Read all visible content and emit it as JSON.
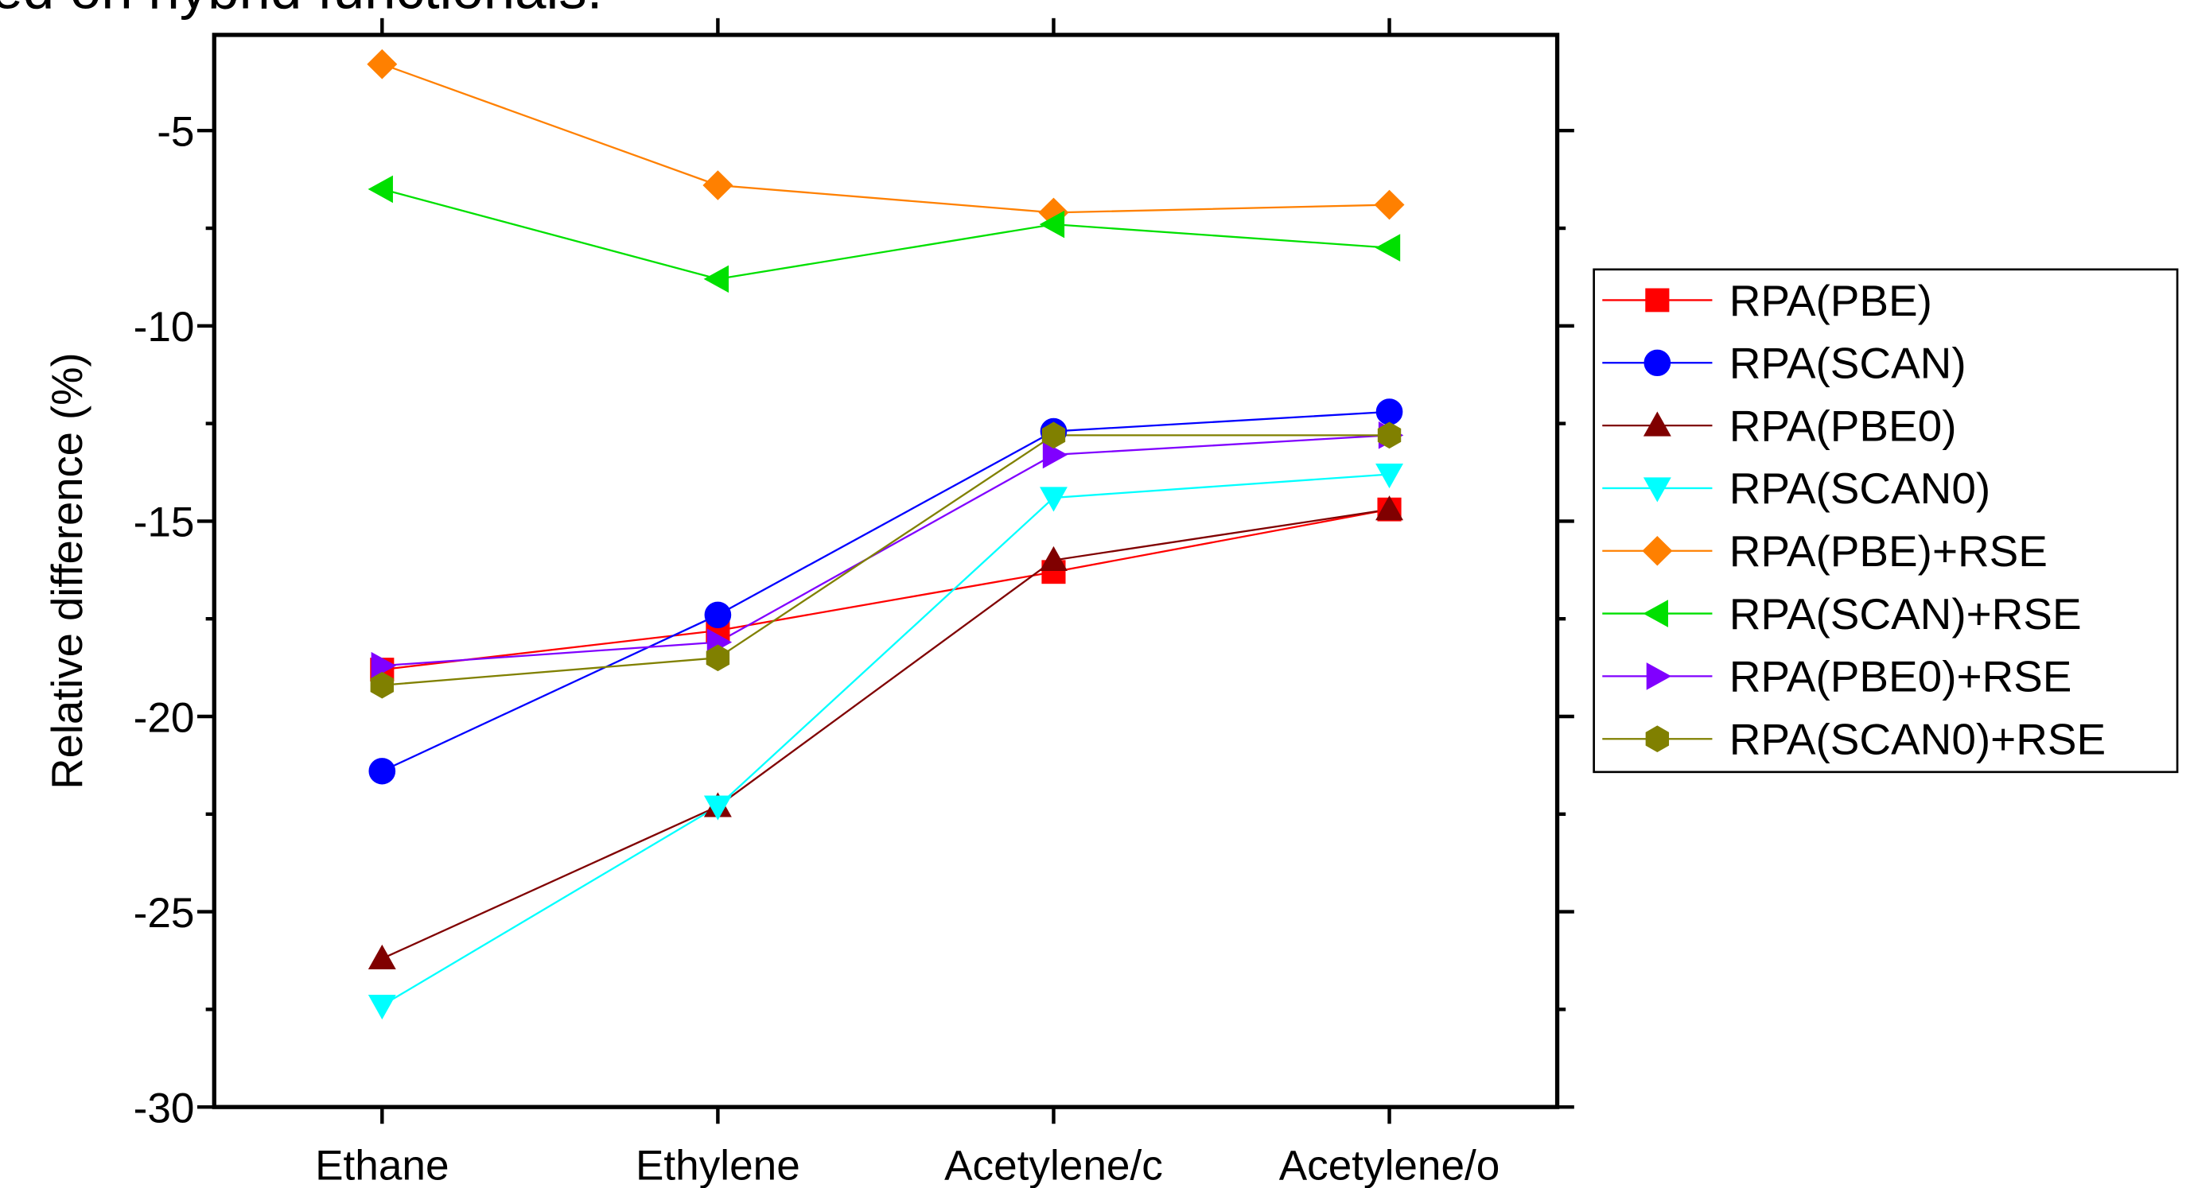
{
  "chart_data": {
    "type": "line",
    "title": "ed on hybrid functionals.",
    "y_label": "Relative difference (%)",
    "categories": [
      "Ethane",
      "Ethylene",
      "Acetylene/c",
      "Acetylene/o"
    ],
    "ylim": [
      -30,
      -2.55
    ],
    "yticks": [
      -30,
      -25,
      -20,
      -15,
      -10,
      -5
    ],
    "yminorticks": [
      -27.5,
      -22.5,
      -17.5,
      -12.5,
      -7.5
    ],
    "legend": "right",
    "series": [
      {
        "name": "RPA(PBE)",
        "color": "#ff0000",
        "marker": "square",
        "values": [
          -18.8,
          -17.8,
          -16.3,
          -14.7
        ]
      },
      {
        "name": "RPA(SCAN)",
        "color": "#0000ff",
        "marker": "circle",
        "values": [
          -21.4,
          -17.4,
          -12.7,
          -12.2
        ]
      },
      {
        "name": "RPA(PBE0)",
        "color": "#800000",
        "marker": "triangle-up",
        "values": [
          -26.2,
          -22.3,
          -16.0,
          -14.7
        ]
      },
      {
        "name": "RPA(SCAN0)",
        "color": "#00ffff",
        "marker": "triangle-down",
        "values": [
          -27.4,
          -22.3,
          -14.4,
          -13.8
        ]
      },
      {
        "name": "RPA(PBE)+RSE",
        "color": "#ff8000",
        "marker": "diamond",
        "values": [
          -3.3,
          -6.4,
          -7.1,
          -6.9
        ]
      },
      {
        "name": "RPA(SCAN)+RSE",
        "color": "#00e000",
        "marker": "triangle-left",
        "values": [
          -6.5,
          -8.8,
          -7.4,
          -8.0
        ]
      },
      {
        "name": "RPA(PBE0)+RSE",
        "color": "#8000ff",
        "marker": "triangle-right",
        "values": [
          -18.7,
          -18.1,
          -13.3,
          -12.8
        ]
      },
      {
        "name": "RPA(SCAN0)+RSE",
        "color": "#808000",
        "marker": "hexagon",
        "values": [
          -19.2,
          -18.5,
          -12.8,
          -12.8
        ]
      }
    ]
  }
}
